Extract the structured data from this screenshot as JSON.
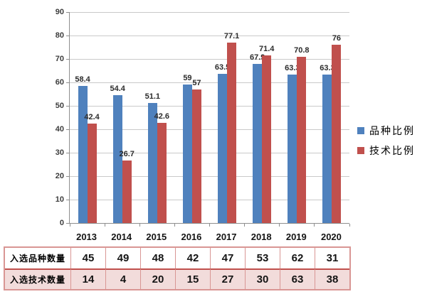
{
  "chart_data": {
    "type": "bar",
    "title": "",
    "xlabel": "",
    "ylabel": "",
    "categories": [
      "2013",
      "2014",
      "2015",
      "2016",
      "2017",
      "2018",
      "2019",
      "2020"
    ],
    "series": [
      {
        "name": "品种比例",
        "color": "#4f81bd",
        "values": [
          58.4,
          54.4,
          51.1,
          59,
          63.5,
          67.9,
          63.3,
          63.3
        ]
      },
      {
        "name": "技术比例",
        "color": "#c0504d",
        "values": [
          42.4,
          26.7,
          42.6,
          57,
          77.1,
          71.4,
          70.8,
          76
        ]
      }
    ],
    "ylim": [
      0,
      90
    ],
    "yticks": [
      0,
      10,
      20,
      30,
      40,
      50,
      60,
      70,
      80,
      90
    ],
    "grid": true,
    "legend_position": "right",
    "data_labels": true
  },
  "table": {
    "rows": [
      {
        "header": "入选品种数量",
        "values": [
          45,
          49,
          48,
          42,
          47,
          53,
          62,
          31
        ]
      },
      {
        "header": "入选技术数量",
        "values": [
          14,
          4,
          20,
          15,
          27,
          30,
          63,
          38
        ]
      }
    ]
  },
  "colors": {
    "series1": "#4f81bd",
    "series2": "#c0504d",
    "gridline": "#c9c9c9",
    "axis": "#8e8e8e",
    "table_border": "#d99694",
    "table_divider": "#c0504d",
    "table_row2_bg": "#f2dcdb"
  }
}
